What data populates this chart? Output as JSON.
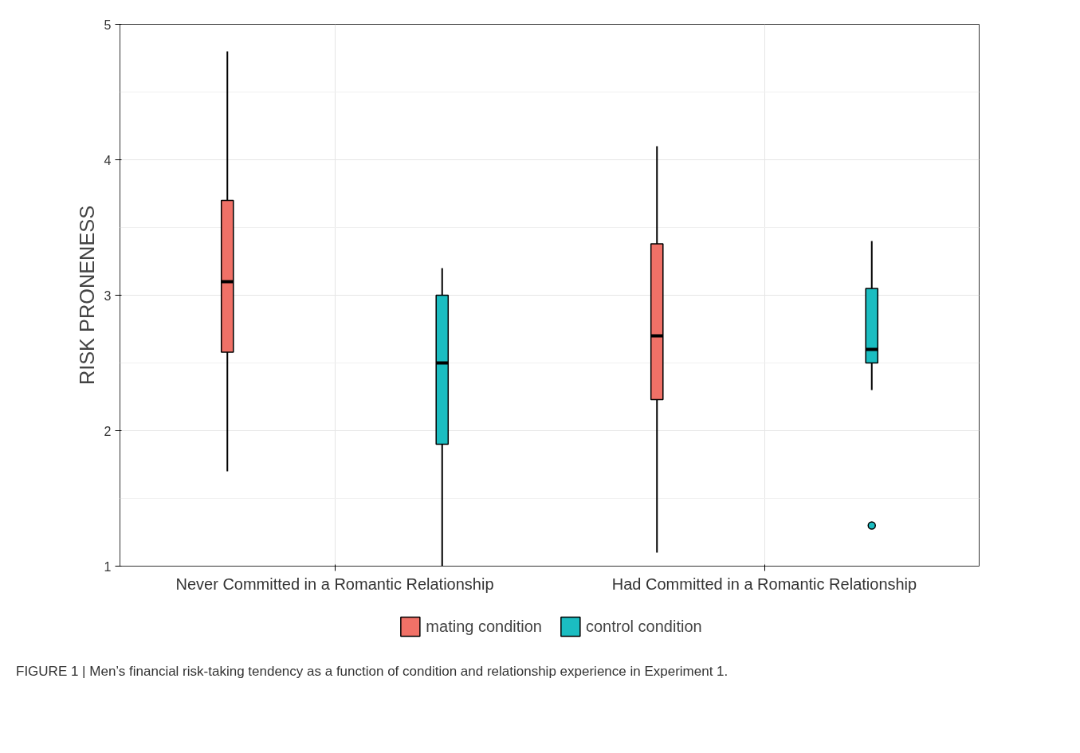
{
  "chart_data": {
    "type": "box",
    "categories": [
      "Never Committed in a Romantic Relationship",
      "Had Committed in a Romantic Relationship"
    ],
    "ylabel": "RISK PRONENESS",
    "ylim": [
      1,
      5
    ],
    "yticks": [
      1,
      2,
      3,
      4,
      5
    ],
    "grid": true,
    "legend": "bottom",
    "series": [
      {
        "name": "mating condition",
        "color": "#f07167",
        "boxes": [
          {
            "low": 1.7,
            "q1": 2.58,
            "median": 3.1,
            "q3": 3.7,
            "high": 4.8
          },
          {
            "low": 1.1,
            "q1": 2.23,
            "median": 2.7,
            "q3": 3.38,
            "high": 4.1
          }
        ]
      },
      {
        "name": "control condition",
        "color": "#1bbdc1",
        "boxes": [
          {
            "low": 1.0,
            "q1": 1.9,
            "median": 2.5,
            "q3": 3.0,
            "high": 3.2
          },
          {
            "low": 2.3,
            "q1": 2.5,
            "median": 2.6,
            "q3": 3.05,
            "high": 3.4,
            "outliers": [
              1.3
            ]
          }
        ]
      }
    ],
    "annotations": [
      "FIGURE 1 | Men’s financial risk-taking tendency as a function of condition and relationship experience in Experiment 1."
    ]
  }
}
